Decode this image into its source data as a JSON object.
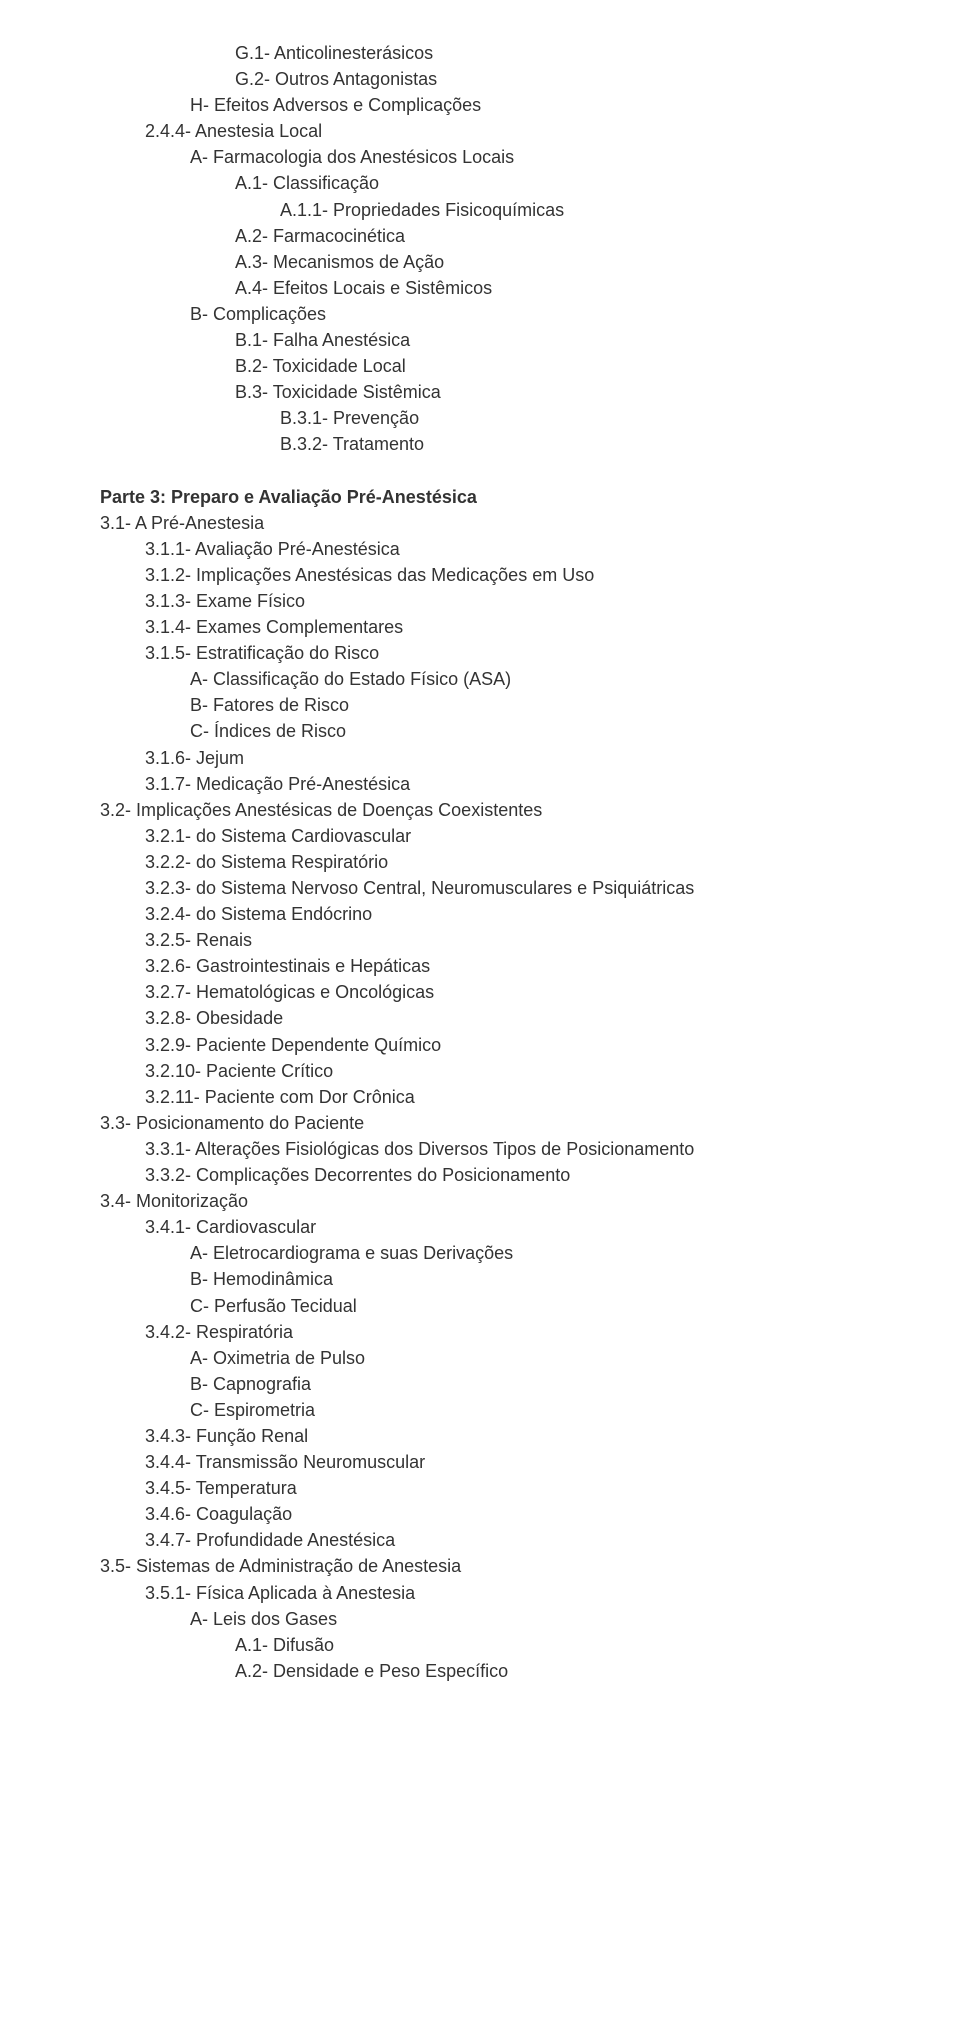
{
  "font": {
    "family": "Arial",
    "size_pt": 14,
    "color": "#333333",
    "bold_weight": 700
  },
  "background_color": "#ffffff",
  "lines": [
    {
      "indent": 4,
      "bold": false,
      "text": "G.1- Anticolinesterásicos"
    },
    {
      "indent": 4,
      "bold": false,
      "text": "G.2- Outros Antagonistas"
    },
    {
      "indent": 3,
      "bold": false,
      "text": "H- Efeitos Adversos e Complicações"
    },
    {
      "indent": 2,
      "bold": false,
      "text": "2.4.4- Anestesia Local"
    },
    {
      "indent": 3,
      "bold": false,
      "text": "A- Farmacologia dos Anestésicos Locais"
    },
    {
      "indent": 4,
      "bold": false,
      "text": "A.1- Classificação"
    },
    {
      "indent": 5,
      "bold": false,
      "text": "A.1.1- Propriedades Fisicoquímicas"
    },
    {
      "indent": 4,
      "bold": false,
      "text": "A.2- Farmacocinética"
    },
    {
      "indent": 4,
      "bold": false,
      "text": "A.3- Mecanismos de Ação"
    },
    {
      "indent": 4,
      "bold": false,
      "text": "A.4- Efeitos Locais e Sistêmicos"
    },
    {
      "indent": 3,
      "bold": false,
      "text": "B- Complicações"
    },
    {
      "indent": 4,
      "bold": false,
      "text": "B.1- Falha Anestésica"
    },
    {
      "indent": 4,
      "bold": false,
      "text": "B.2- Toxicidade Local"
    },
    {
      "indent": 4,
      "bold": false,
      "text": "B.3- Toxicidade Sistêmica"
    },
    {
      "indent": 5,
      "bold": false,
      "text": "B.3.1- Prevenção"
    },
    {
      "indent": 5,
      "bold": false,
      "text": "B.3.2- Tratamento"
    },
    {
      "indent": 1,
      "bold": false,
      "text": " "
    },
    {
      "indent": 1,
      "bold": true,
      "text": "Parte 3: Preparo e Avaliação Pré-Anestésica"
    },
    {
      "indent": 1,
      "bold": false,
      "text": "3.1- A Pré-Anestesia"
    },
    {
      "indent": 2,
      "bold": false,
      "text": "3.1.1- Avaliação Pré-Anestésica"
    },
    {
      "indent": 2,
      "bold": false,
      "text": "3.1.2- Implicações Anestésicas das Medicações em Uso"
    },
    {
      "indent": 2,
      "bold": false,
      "text": "3.1.3- Exame Físico"
    },
    {
      "indent": 2,
      "bold": false,
      "text": "3.1.4- Exames Complementares"
    },
    {
      "indent": 2,
      "bold": false,
      "text": "3.1.5- Estratificação do Risco"
    },
    {
      "indent": 3,
      "bold": false,
      "text": "A- Classificação do Estado Físico (ASA)"
    },
    {
      "indent": 3,
      "bold": false,
      "text": "B- Fatores de Risco"
    },
    {
      "indent": 3,
      "bold": false,
      "text": "C- Índices de Risco"
    },
    {
      "indent": 2,
      "bold": false,
      "text": "3.1.6- Jejum"
    },
    {
      "indent": 2,
      "bold": false,
      "text": "3.1.7- Medicação Pré-Anestésica"
    },
    {
      "indent": 1,
      "bold": false,
      "text": "3.2- Implicações Anestésicas de Doenças Coexistentes"
    },
    {
      "indent": 2,
      "bold": false,
      "text": "3.2.1- do Sistema Cardiovascular"
    },
    {
      "indent": 2,
      "bold": false,
      "text": "3.2.2- do Sistema Respiratório"
    },
    {
      "indent": 2,
      "bold": false,
      "text": "3.2.3- do Sistema Nervoso Central, Neuromusculares e Psiquiátricas"
    },
    {
      "indent": 2,
      "bold": false,
      "text": "3.2.4- do Sistema Endócrino"
    },
    {
      "indent": 2,
      "bold": false,
      "text": "3.2.5- Renais"
    },
    {
      "indent": 2,
      "bold": false,
      "text": "3.2.6- Gastrointestinais e Hepáticas"
    },
    {
      "indent": 2,
      "bold": false,
      "text": "3.2.7- Hematológicas e Oncológicas"
    },
    {
      "indent": 2,
      "bold": false,
      "text": "3.2.8- Obesidade"
    },
    {
      "indent": 2,
      "bold": false,
      "text": "3.2.9- Paciente Dependente Químico"
    },
    {
      "indent": 2,
      "bold": false,
      "text": "3.2.10- Paciente Crítico"
    },
    {
      "indent": 2,
      "bold": false,
      "text": "3.2.11- Paciente com Dor Crônica"
    },
    {
      "indent": 1,
      "bold": false,
      "text": "3.3- Posicionamento do Paciente"
    },
    {
      "indent": 2,
      "bold": false,
      "text": "3.3.1- Alterações Fisiológicas dos Diversos Tipos de Posicionamento"
    },
    {
      "indent": 2,
      "bold": false,
      "text": "3.3.2- Complicações Decorrentes do Posicionamento"
    },
    {
      "indent": 1,
      "bold": false,
      "text": "3.4- Monitorização"
    },
    {
      "indent": 2,
      "bold": false,
      "text": "3.4.1- Cardiovascular"
    },
    {
      "indent": 3,
      "bold": false,
      "text": "A- Eletrocardiograma e suas Derivações"
    },
    {
      "indent": 3,
      "bold": false,
      "text": "B- Hemodinâmica"
    },
    {
      "indent": 3,
      "bold": false,
      "text": "C- Perfusão Tecidual"
    },
    {
      "indent": 2,
      "bold": false,
      "text": "3.4.2- Respiratória"
    },
    {
      "indent": 3,
      "bold": false,
      "text": "A- Oximetria de Pulso"
    },
    {
      "indent": 3,
      "bold": false,
      "text": "B- Capnografia"
    },
    {
      "indent": 3,
      "bold": false,
      "text": "C- Espirometria"
    },
    {
      "indent": 2,
      "bold": false,
      "text": "3.4.3- Função Renal"
    },
    {
      "indent": 2,
      "bold": false,
      "text": "3.4.4- Transmissão Neuromuscular"
    },
    {
      "indent": 2,
      "bold": false,
      "text": "3.4.5- Temperatura"
    },
    {
      "indent": 2,
      "bold": false,
      "text": "3.4.6- Coagulação"
    },
    {
      "indent": 2,
      "bold": false,
      "text": "3.4.7- Profundidade Anestésica"
    },
    {
      "indent": 1,
      "bold": false,
      "text": "3.5- Sistemas de Administração de Anestesia"
    },
    {
      "indent": 2,
      "bold": false,
      "text": "3.5.1- Física Aplicada à Anestesia"
    },
    {
      "indent": 3,
      "bold": false,
      "text": "A- Leis dos Gases"
    },
    {
      "indent": 4,
      "bold": false,
      "text": "A.1- Difusão"
    },
    {
      "indent": 4,
      "bold": false,
      "text": "A.2- Densidade e Peso Específico"
    }
  ]
}
